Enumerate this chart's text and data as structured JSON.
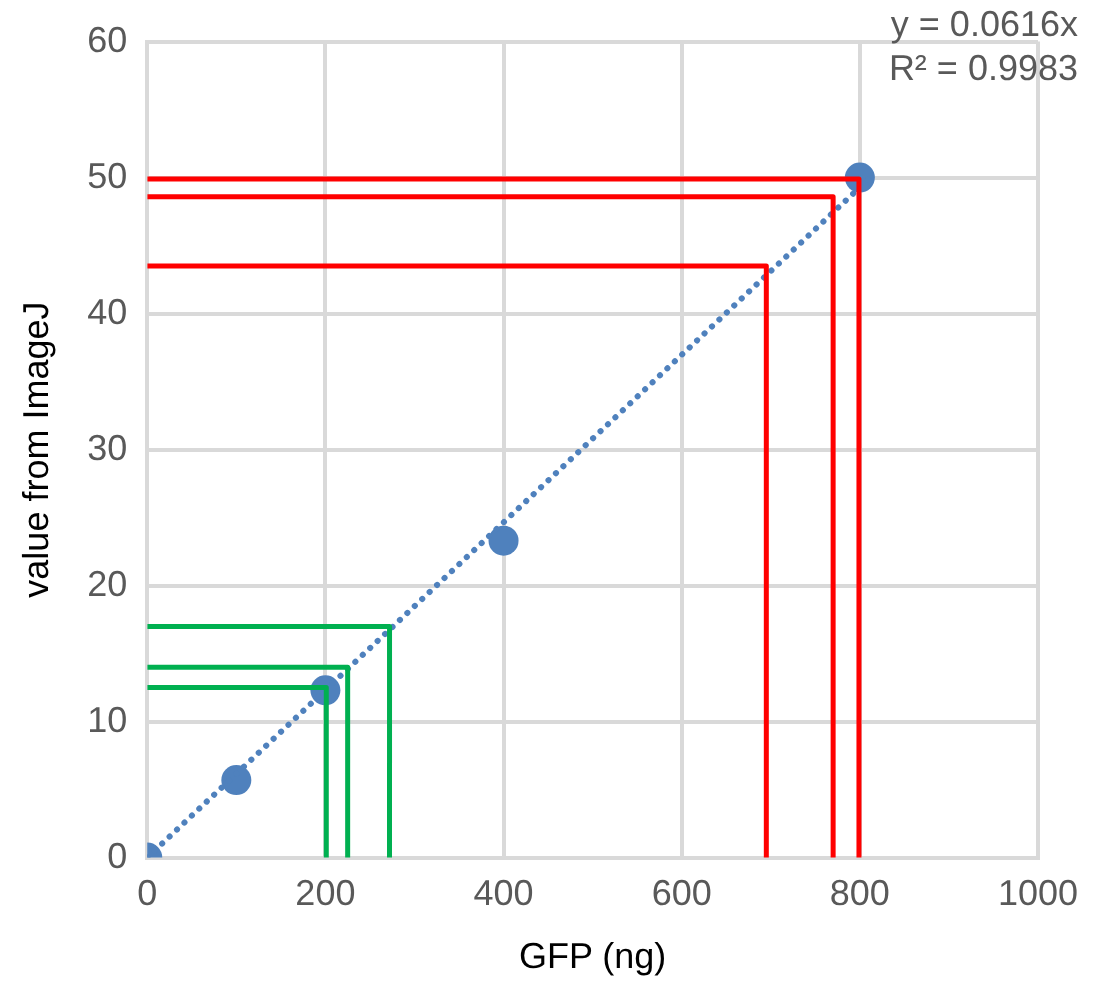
{
  "chart_data": {
    "type": "scatter",
    "xlabel": "GFP (ng)",
    "ylabel": "value from ImageJ",
    "xlim": [
      0,
      1000
    ],
    "xticks": [
      0,
      200,
      400,
      600,
      800,
      1000
    ],
    "ylim": [
      0,
      60
    ],
    "yticks": [
      0,
      10,
      20,
      30,
      40,
      50,
      60
    ],
    "grid": true,
    "legend": false,
    "annotations": [
      "y = 0.0616x",
      "R² = 0.9983"
    ],
    "series": [
      {
        "type": "line",
        "color": "#ff0000",
        "x": [
          0,
          799,
          799
        ],
        "values": [
          49.9,
          49.9,
          0
        ],
        "marker": "none",
        "line_style": "solid"
      },
      {
        "type": "line",
        "color": "#ff0000",
        "x": [
          0,
          770,
          770
        ],
        "values": [
          48.6,
          48.6,
          0
        ],
        "marker": "none",
        "line_style": "solid"
      },
      {
        "type": "line",
        "color": "#ff0000",
        "x": [
          0,
          695,
          695
        ],
        "values": [
          43.5,
          43.5,
          0
        ],
        "marker": "none",
        "line_style": "solid"
      },
      {
        "type": "line",
        "color": "#00b050",
        "x": [
          0,
          272,
          272
        ],
        "values": [
          17,
          17,
          0
        ],
        "marker": "none",
        "line_style": "solid"
      },
      {
        "type": "line",
        "color": "#00b050",
        "x": [
          0,
          225,
          225
        ],
        "values": [
          14,
          14,
          0
        ],
        "marker": "none",
        "line_style": "solid"
      },
      {
        "type": "line",
        "color": "#00b050",
        "x": [
          0,
          201,
          201
        ],
        "values": [
          12.5,
          12.5,
          0
        ],
        "marker": "none",
        "line_style": "solid"
      },
      {
        "type": "line",
        "color": "#4f81bd",
        "x": [
          0,
          810
        ],
        "values": [
          0,
          49.9
        ],
        "marker": "none",
        "line_style": "dotted"
      },
      {
        "type": "scatter",
        "color": "#4f81bd",
        "x": [
          0,
          100,
          200,
          400,
          800
        ],
        "values": [
          0,
          5.7,
          12.3,
          23.3,
          50
        ],
        "marker": "circle"
      }
    ]
  }
}
